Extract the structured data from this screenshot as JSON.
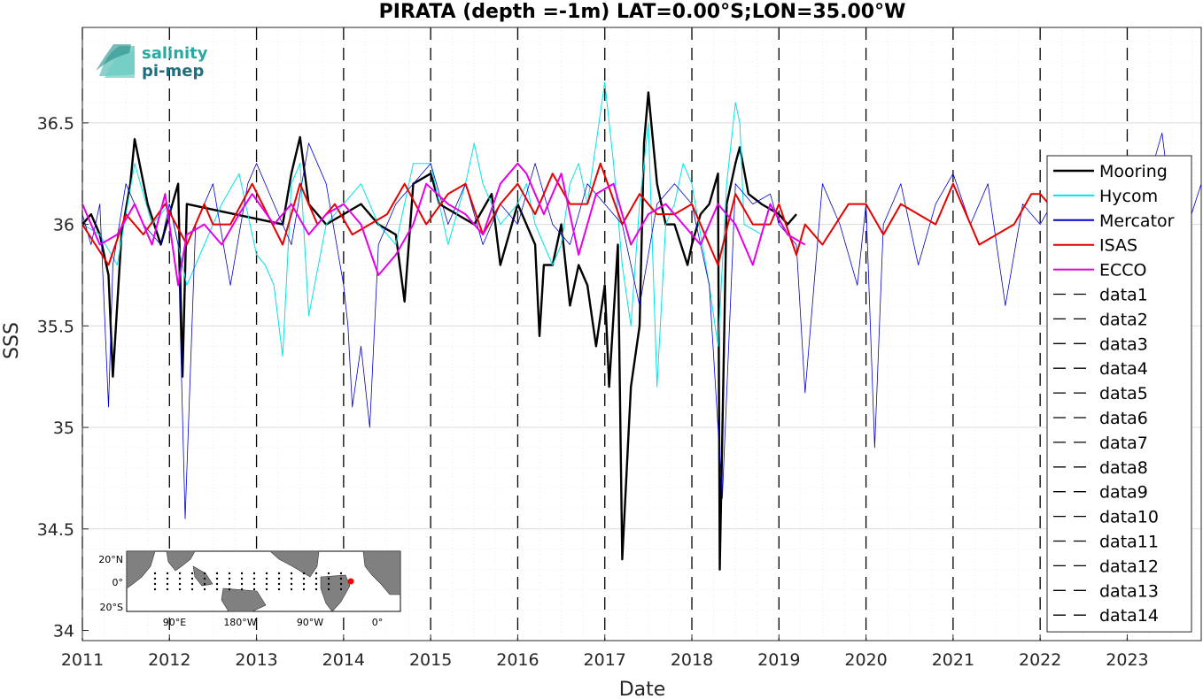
{
  "chart_data": {
    "type": "line",
    "title": "PIRATA (depth =-1m) LAT=0.00°S;LON=35.00°W",
    "xlabel": "Date",
    "ylabel": "SSS",
    "xlim": [
      2011.0,
      2023.85
    ],
    "ylim": [
      33.95,
      36.97
    ],
    "x_ticks": [
      "2011",
      "2012",
      "2013",
      "2014",
      "2015",
      "2016",
      "2017",
      "2018",
      "2019",
      "2020",
      "2021",
      "2022",
      "2023"
    ],
    "y_ticks": [
      "34",
      "34.5",
      "35",
      "35.5",
      "36",
      "36.5"
    ],
    "grid": true,
    "legend_position": "right",
    "series": [
      {
        "name": "Mooring",
        "color": "#000000",
        "x": [
          2011.0,
          2011.1,
          2011.2,
          2011.3,
          2011.35,
          2011.45,
          2011.55,
          2011.6,
          2011.75,
          2011.9,
          2012.0,
          2012.1,
          2012.15,
          2012.2,
          2013.3,
          2013.4,
          2013.5,
          2013.6,
          2013.8,
          2014.0,
          2014.2,
          2014.4,
          2014.6,
          2014.7,
          2014.8,
          2015.0,
          2015.1,
          2015.3,
          2015.5,
          2015.7,
          2015.8,
          2016.0,
          2016.1,
          2016.2,
          2016.25,
          2016.3,
          2016.4,
          2016.5,
          2016.6,
          2016.7,
          2016.8,
          2016.9,
          2017.0,
          2017.05,
          2017.15,
          2017.2,
          2017.3,
          2017.4,
          2017.45,
          2017.5,
          2017.6,
          2017.7,
          2017.8,
          2017.95,
          2018.0,
          2018.1,
          2018.2,
          2018.3,
          2018.32,
          2018.4,
          2018.5,
          2018.55,
          2018.65,
          2018.8,
          2019.0,
          2019.1,
          2019.2
        ],
        "y": [
          36.0,
          36.05,
          35.95,
          35.75,
          35.25,
          35.95,
          36.2,
          36.42,
          36.1,
          35.9,
          36.05,
          36.2,
          35.25,
          36.1,
          36.0,
          36.25,
          36.43,
          36.1,
          36.0,
          36.05,
          36.1,
          36.0,
          35.95,
          35.62,
          36.2,
          36.25,
          36.1,
          36.05,
          36.0,
          36.15,
          35.8,
          36.1,
          36.0,
          35.9,
          35.45,
          35.8,
          35.8,
          36.0,
          35.6,
          35.8,
          35.7,
          35.4,
          35.7,
          35.2,
          35.9,
          34.35,
          35.2,
          35.5,
          36.4,
          36.65,
          36.2,
          36.0,
          36.0,
          35.8,
          35.9,
          36.05,
          36.1,
          36.25,
          34.3,
          36.1,
          36.3,
          36.38,
          36.15,
          36.1,
          36.05,
          36.0,
          36.05
        ]
      },
      {
        "name": "Hycom",
        "color": "#00e5e5",
        "x": [
          2011.0,
          2011.2,
          2011.4,
          2011.6,
          2011.8,
          2012.0,
          2012.2,
          2012.4,
          2012.6,
          2012.8,
          2013.0,
          2013.1,
          2013.2,
          2013.3,
          2013.4,
          2013.5,
          2013.6,
          2013.8,
          2014.0,
          2014.2,
          2014.4,
          2014.6,
          2014.8,
          2015.0,
          2015.2,
          2015.4,
          2015.5,
          2015.6,
          2015.8,
          2016.0,
          2016.1,
          2016.2,
          2016.4,
          2016.5,
          2016.6,
          2016.7,
          2016.8,
          2016.9,
          2017.0,
          2017.1,
          2017.2,
          2017.3,
          2017.4,
          2017.5,
          2017.6,
          2017.7,
          2017.8,
          2017.9,
          2018.0,
          2018.2,
          2018.3,
          2018.4,
          2018.5,
          2018.55,
          2018.6,
          2018.8
        ],
        "y": [
          36.0,
          35.95,
          35.8,
          36.3,
          36.0,
          36.1,
          35.7,
          35.9,
          36.1,
          36.25,
          35.85,
          35.8,
          35.7,
          35.35,
          36.2,
          36.3,
          35.55,
          36.0,
          36.1,
          36.2,
          36.0,
          35.9,
          36.3,
          36.3,
          35.9,
          36.2,
          36.4,
          36.2,
          36.0,
          36.1,
          36.2,
          36.0,
          35.8,
          35.9,
          36.2,
          36.3,
          36.1,
          36.4,
          36.7,
          36.3,
          35.8,
          35.5,
          36.1,
          36.5,
          35.2,
          36.0,
          36.1,
          36.3,
          36.2,
          35.7,
          35.4,
          36.2,
          36.6,
          36.5,
          36.0,
          35.95
        ]
      },
      {
        "name": "Mercator",
        "color": "#0000cc",
        "x": [
          2011.0,
          2011.1,
          2011.2,
          2011.3,
          2011.35,
          2011.5,
          2011.7,
          2011.9,
          2012.0,
          2012.1,
          2012.18,
          2012.3,
          2012.5,
          2012.7,
          2012.9,
          2013.0,
          2013.2,
          2013.4,
          2013.6,
          2013.8,
          2014.0,
          2014.05,
          2014.1,
          2014.2,
          2014.3,
          2014.4,
          2014.6,
          2014.8,
          2015.0,
          2015.2,
          2015.4,
          2015.6,
          2015.8,
          2016.0,
          2016.2,
          2016.4,
          2016.6,
          2016.8,
          2017.0,
          2017.2,
          2017.4,
          2017.6,
          2017.8,
          2018.0,
          2018.2,
          2018.35,
          2018.5,
          2018.7,
          2018.9,
          2019.0,
          2019.2,
          2019.3,
          2019.5,
          2019.7,
          2019.9,
          2020.0,
          2020.1,
          2020.2,
          2020.4,
          2020.6,
          2020.8,
          2021.0,
          2021.2,
          2021.4,
          2021.6,
          2021.8,
          2022.0,
          2022.2,
          2022.4,
          2022.6,
          2022.8,
          2023.0,
          2023.2,
          2023.3,
          2023.4,
          2023.5,
          2023.6,
          2023.7,
          2023.85
        ],
        "y": [
          36.05,
          35.9,
          36.1,
          35.1,
          35.8,
          36.2,
          36.0,
          35.9,
          36.1,
          35.9,
          34.55,
          36.0,
          36.2,
          35.7,
          36.2,
          36.3,
          36.1,
          35.9,
          36.4,
          36.2,
          35.7,
          35.5,
          35.1,
          35.4,
          35.0,
          35.9,
          36.1,
          36.2,
          36.3,
          36.0,
          36.2,
          35.9,
          36.1,
          36.0,
          36.3,
          36.0,
          35.9,
          36.2,
          36.1,
          36.0,
          35.6,
          36.1,
          36.2,
          36.1,
          35.7,
          34.65,
          36.2,
          36.1,
          36.15,
          36.0,
          35.9,
          35.17,
          36.2,
          36.0,
          35.7,
          36.1,
          34.9,
          36.0,
          36.2,
          35.8,
          36.1,
          36.25,
          36.0,
          36.2,
          35.6,
          36.1,
          36.0,
          36.15,
          35.8,
          36.2,
          35.9,
          36.0,
          36.1,
          36.3,
          36.45,
          36.1,
          35.95,
          36.0,
          36.2
        ]
      },
      {
        "name": "ISAS",
        "color": "#e60000",
        "x": [
          2011.0,
          2011.3,
          2011.5,
          2011.7,
          2011.95,
          2012.2,
          2012.4,
          2012.5,
          2012.7,
          2012.95,
          2013.3,
          2013.5,
          2013.7,
          2013.9,
          2014.1,
          2014.3,
          2014.5,
          2014.7,
          2014.95,
          2015.2,
          2015.4,
          2015.6,
          2015.8,
          2016.0,
          2016.2,
          2016.4,
          2016.6,
          2016.8,
          2016.95,
          2017.2,
          2017.4,
          2017.6,
          2017.8,
          2018.0,
          2018.1,
          2018.3,
          2018.5,
          2018.7,
          2018.9,
          2019.0,
          2019.2,
          2019.3,
          2019.5,
          2019.8,
          2020.0,
          2020.2,
          2020.4,
          2020.6,
          2020.8,
          2021.0,
          2021.3,
          2021.5,
          2021.7,
          2021.9,
          2022.0,
          2022.1,
          2022.2
        ],
        "y": [
          36.0,
          35.8,
          36.05,
          35.95,
          36.1,
          35.9,
          36.1,
          36.0,
          36.0,
          36.2,
          35.9,
          36.2,
          36.0,
          36.1,
          35.95,
          36.0,
          36.05,
          36.2,
          36.0,
          36.15,
          36.2,
          35.95,
          36.1,
          36.2,
          36.05,
          36.25,
          36.1,
          36.1,
          36.3,
          36.0,
          36.15,
          36.05,
          36.05,
          36.1,
          36.0,
          35.8,
          36.15,
          36.0,
          36.0,
          36.1,
          35.85,
          36.0,
          35.9,
          36.1,
          36.1,
          35.95,
          36.1,
          36.05,
          36.0,
          36.2,
          35.9,
          35.95,
          36.0,
          36.15,
          36.15,
          36.1,
          36.1
        ]
      },
      {
        "name": "ECCO",
        "color": "#e600e6",
        "x": [
          2011.0,
          2011.2,
          2011.4,
          2011.6,
          2011.8,
          2011.95,
          2012.1,
          2012.2,
          2012.4,
          2012.6,
          2012.8,
          2012.95,
          2013.2,
          2013.4,
          2013.6,
          2013.8,
          2014.0,
          2014.2,
          2014.4,
          2014.6,
          2014.8,
          2014.95,
          2015.2,
          2015.4,
          2015.6,
          2015.8,
          2016.0,
          2016.1,
          2016.3,
          2016.5,
          2016.7,
          2016.9,
          2017.1,
          2017.3,
          2017.5,
          2017.7,
          2017.9,
          2018.1,
          2018.3,
          2018.5,
          2018.7,
          2018.9,
          2019.1,
          2019.3
        ],
        "y": [
          36.1,
          35.9,
          35.95,
          36.1,
          35.9,
          36.15,
          35.7,
          35.95,
          36.0,
          35.9,
          36.05,
          36.15,
          36.0,
          36.1,
          35.95,
          36.05,
          36.1,
          36.0,
          35.75,
          35.85,
          36.0,
          36.2,
          36.1,
          36.05,
          35.95,
          36.2,
          36.3,
          36.25,
          36.05,
          36.25,
          35.85,
          36.15,
          36.2,
          35.9,
          36.05,
          36.1,
          36.0,
          35.9,
          36.1,
          36.0,
          35.8,
          36.1,
          35.95,
          35.9
        ]
      }
    ],
    "dashed_series": [
      "data1",
      "data2",
      "data3",
      "data4",
      "data5",
      "data6",
      "data7",
      "data8",
      "data9",
      "data10",
      "data11",
      "data12",
      "data13",
      "data14"
    ],
    "dashed_x": [
      2011.0,
      2012.0,
      2013.0,
      2014.0,
      2015.0,
      2016.0,
      2017.0,
      2018.0,
      2019.0,
      2020.0,
      2021.0,
      2022.0,
      2023.0
    ]
  },
  "logo": {
    "line1": "salinity",
    "line2": "pi-mep",
    "color1": "#2aa9a0",
    "color2": "#1f6f80"
  },
  "inset_map": {
    "lat_ticks": [
      "20°N",
      "0°",
      "20°S"
    ],
    "lon_ticks": [
      "90°E",
      "180°W",
      "90°W",
      "0°"
    ],
    "land_color": "#808080",
    "marker_color": "#ff0000"
  }
}
